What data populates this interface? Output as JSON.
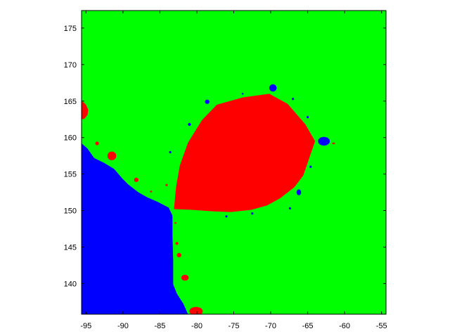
{
  "chart_data": {
    "type": "heatmap",
    "title": "",
    "xlabel": "",
    "ylabel": "",
    "xlim": [
      -95.6,
      -54.4
    ],
    "ylim": [
      135.8,
      177.4
    ],
    "x_ticks": [
      -95,
      -90,
      -85,
      -80,
      -75,
      -70,
      -65,
      -60,
      -55
    ],
    "y_ticks": [
      140,
      145,
      150,
      155,
      160,
      165,
      170,
      175
    ],
    "grid": false,
    "legend": "none",
    "background_color": "#00ff00",
    "regions": [
      {
        "color": "#0000ff",
        "outline": [
          [
            -95.6,
            159.2
          ],
          [
            -94.8,
            158.5
          ],
          [
            -93.9,
            157.2
          ],
          [
            -92.5,
            156.5
          ],
          [
            -91.2,
            155.7
          ],
          [
            -90.1,
            154.4
          ],
          [
            -89.3,
            153.6
          ],
          [
            -87.9,
            152.5
          ],
          [
            -86.7,
            151.8
          ],
          [
            -85.3,
            151.2
          ],
          [
            -83.8,
            150.4
          ],
          [
            -83.3,
            149.3
          ],
          [
            -83.3,
            146.5
          ],
          [
            -83.2,
            143.2
          ],
          [
            -83.2,
            139.9
          ],
          [
            -82.7,
            138.6
          ],
          [
            -81.8,
            137.2
          ],
          [
            -81.2,
            135.8
          ],
          [
            -95.6,
            135.8
          ]
        ]
      },
      {
        "color": "#ff0000",
        "outline": [
          [
            -83.1,
            150.2
          ],
          [
            -82.8,
            153.3
          ],
          [
            -82.3,
            156.2
          ],
          [
            -81.2,
            159.3
          ],
          [
            -79.3,
            162.4
          ],
          [
            -77.3,
            164.5
          ],
          [
            -73.8,
            165.5
          ],
          [
            -70.2,
            166.0
          ],
          [
            -67.7,
            164.6
          ],
          [
            -65.3,
            161.8
          ],
          [
            -64.0,
            159.5
          ],
          [
            -65.6,
            154.8
          ],
          [
            -66.8,
            153.2
          ],
          [
            -68.7,
            151.7
          ],
          [
            -70.5,
            150.7
          ],
          [
            -72.6,
            150.1
          ],
          [
            -75.4,
            149.8
          ],
          [
            -77.8,
            149.9
          ],
          [
            -80.7,
            150.1
          ]
        ]
      },
      {
        "color": "#ff0000",
        "outline": [
          [
            -95.6,
            162.5
          ],
          [
            -95.2,
            162.6
          ],
          [
            -94.8,
            163.1
          ],
          [
            -94.7,
            163.8
          ],
          [
            -95.0,
            164.5
          ],
          [
            -95.4,
            164.9
          ],
          [
            -95.6,
            164.9
          ]
        ]
      }
    ],
    "spots": [
      {
        "x": -91.5,
        "y": 157.5,
        "rx": 0.6,
        "ry": 0.6,
        "color": "#ff0000"
      },
      {
        "x": -88.2,
        "y": 154.2,
        "rx": 0.3,
        "ry": 0.3,
        "color": "#ff0000"
      },
      {
        "x": -93.5,
        "y": 159.2,
        "rx": 0.25,
        "ry": 0.25,
        "color": "#ff0000"
      },
      {
        "x": -80.1,
        "y": 136.2,
        "rx": 0.9,
        "ry": 0.6,
        "color": "#ff0000"
      },
      {
        "x": -81.6,
        "y": 140.8,
        "rx": 0.5,
        "ry": 0.4,
        "color": "#ff0000"
      },
      {
        "x": -82.4,
        "y": 143.9,
        "rx": 0.3,
        "ry": 0.3,
        "color": "#ff0000"
      },
      {
        "x": -82.7,
        "y": 145.5,
        "rx": 0.2,
        "ry": 0.2,
        "color": "#ff0000"
      },
      {
        "x": -62.8,
        "y": 159.5,
        "rx": 0.8,
        "ry": 0.6,
        "color": "#0000ff"
      },
      {
        "x": -69.7,
        "y": 166.8,
        "rx": 0.5,
        "ry": 0.5,
        "color": "#0000ff"
      },
      {
        "x": -78.6,
        "y": 164.9,
        "rx": 0.3,
        "ry": 0.3,
        "color": "#0000ff"
      },
      {
        "x": -66.2,
        "y": 152.5,
        "rx": 0.3,
        "ry": 0.4,
        "color": "#0000ff"
      },
      {
        "x": -81.0,
        "y": 161.8,
        "rx": 0.2,
        "ry": 0.2,
        "color": "#0000ff"
      },
      {
        "x": -83.6,
        "y": 158.0,
        "rx": 0.15,
        "ry": 0.15,
        "color": "#0000ff"
      },
      {
        "x": -84.1,
        "y": 153.5,
        "rx": 0.15,
        "ry": 0.15,
        "color": "#ff0000"
      },
      {
        "x": -76.0,
        "y": 149.2,
        "rx": 0.15,
        "ry": 0.15,
        "color": "#0000ff"
      },
      {
        "x": -72.5,
        "y": 149.6,
        "rx": 0.15,
        "ry": 0.15,
        "color": "#0000ff"
      },
      {
        "x": -67.4,
        "y": 150.3,
        "rx": 0.15,
        "ry": 0.15,
        "color": "#0000ff"
      },
      {
        "x": -64.6,
        "y": 156.0,
        "rx": 0.15,
        "ry": 0.15,
        "color": "#0000ff"
      },
      {
        "x": -65.0,
        "y": 162.8,
        "rx": 0.15,
        "ry": 0.15,
        "color": "#0000ff"
      },
      {
        "x": -67.0,
        "y": 165.3,
        "rx": 0.15,
        "ry": 0.15,
        "color": "#0000ff"
      },
      {
        "x": -73.8,
        "y": 166.0,
        "rx": 0.12,
        "ry": 0.12,
        "color": "#0000ff"
      },
      {
        "x": -61.5,
        "y": 159.2,
        "rx": 0.2,
        "ry": 0.12,
        "color": "#ff0000"
      },
      {
        "x": -82.9,
        "y": 148.3,
        "rx": 0.12,
        "ry": 0.12,
        "color": "#ff0000"
      },
      {
        "x": -86.2,
        "y": 152.6,
        "rx": 0.15,
        "ry": 0.12,
        "color": "#ff0000"
      }
    ]
  }
}
